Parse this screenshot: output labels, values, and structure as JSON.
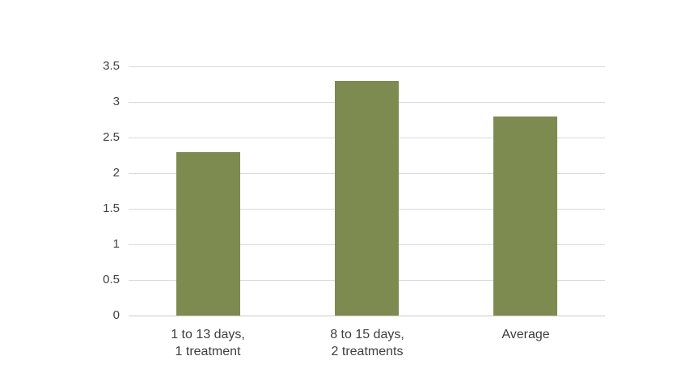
{
  "chart_data": {
    "type": "bar",
    "title": "",
    "xlabel": "",
    "ylabel": "",
    "categories": [
      "1 to 13 days, 1 treatment",
      "8 to 15 days, 2 treatments",
      "Average"
    ],
    "category_label_lines": [
      [
        "1 to 13 days,",
        "1 treatment"
      ],
      [
        "8 to 15 days,",
        "2 treatments"
      ],
      [
        "Average"
      ]
    ],
    "values": [
      2.3,
      3.3,
      2.8
    ],
    "ylim": [
      0,
      3.5
    ],
    "ytick_step": 0.5,
    "ytick_labels": [
      "0",
      "0.5",
      "1",
      "1.5",
      "2",
      "2.5",
      "3",
      "3.5"
    ],
    "grid": "horizontal-on",
    "legend": "none",
    "colors": {
      "bar_fill": "#7d8a50",
      "gridline": "#d9d9d9",
      "axis_line": "#cbcbcb",
      "tick_text": "#424242",
      "category_text": "#3e3e3e",
      "background": "#ffffff"
    }
  }
}
